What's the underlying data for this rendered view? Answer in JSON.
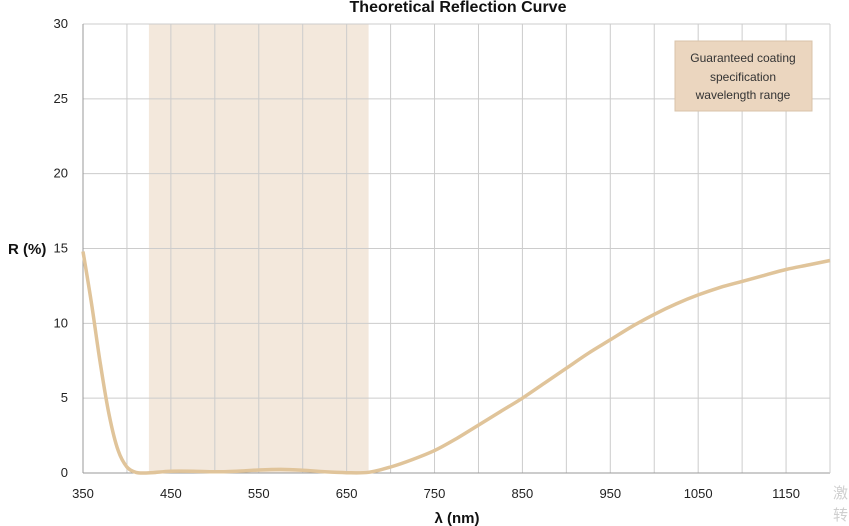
{
  "chart_data": {
    "type": "line",
    "title": "Theoretical Reflection Curve",
    "xlabel": "λ (nm)",
    "ylabel": "R (%)",
    "xlim": [
      350,
      1200
    ],
    "ylim": [
      0,
      30
    ],
    "x_ticks": [
      350,
      450,
      550,
      650,
      750,
      850,
      950,
      1050,
      1150
    ],
    "y_ticks": [
      0,
      5,
      10,
      15,
      20,
      25,
      30
    ],
    "grid": true,
    "colors": {
      "curve": "#e0c49a",
      "band": "#f3e8dc",
      "legend_box": "#ebd6bf",
      "grid": "#cccccc"
    },
    "series": [
      {
        "x": [
          350,
          360,
          370,
          380,
          390,
          400,
          410,
          420,
          430,
          450,
          475,
          500,
          525,
          550,
          575,
          600,
          625,
          650,
          675,
          700,
          725,
          750,
          775,
          800,
          825,
          850,
          875,
          900,
          925,
          950,
          975,
          1000,
          1025,
          1050,
          1075,
          1100,
          1125,
          1150,
          1175,
          1200
        ],
        "values": [
          14.8,
          11.2,
          7.2,
          3.8,
          1.5,
          0.4,
          0.05,
          0.0,
          0.03,
          0.12,
          0.12,
          0.08,
          0.12,
          0.2,
          0.24,
          0.18,
          0.08,
          0.02,
          0.05,
          0.4,
          0.9,
          1.5,
          2.3,
          3.2,
          4.1,
          5.0,
          6.0,
          7.0,
          8.0,
          8.9,
          9.8,
          10.6,
          11.3,
          11.9,
          12.4,
          12.8,
          13.2,
          13.6,
          13.9,
          14.2
        ]
      }
    ],
    "band": {
      "x_range": [
        425,
        675
      ],
      "label": "Guaranteed coating specification wavelength range",
      "label_lines": [
        "Guaranteed coating",
        "specification",
        "wavelength range"
      ]
    }
  },
  "watermark": [
    "激",
    "转"
  ]
}
